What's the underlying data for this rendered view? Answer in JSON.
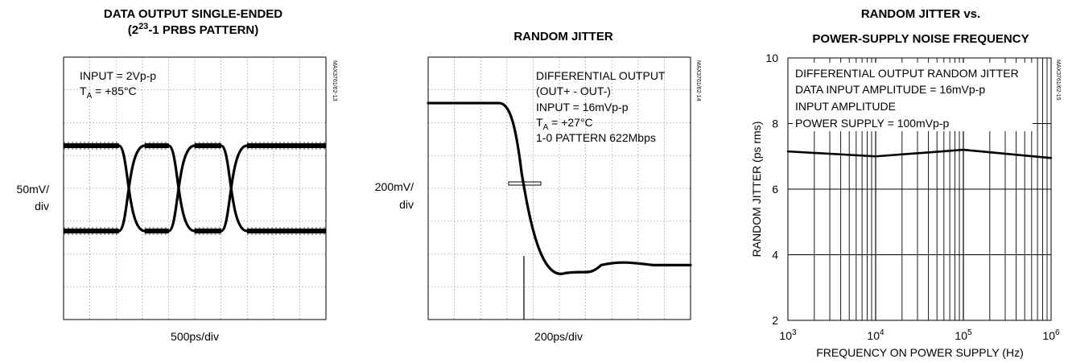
{
  "chart_data": [
    {
      "type": "line",
      "title_line1": "DATA OUTPUT SINGLE-ENDED",
      "title_line2_pre": "(2",
      "title_line2_sup": "23",
      "title_line2_post": "-1 PRBS PATTERN)",
      "annotations": [
        "INPUT = 2Vp-p",
        "T",
        "A",
        " = +85°C"
      ],
      "ylabel": [
        "50mV/",
        "div"
      ],
      "xlabel": "500ps/div",
      "code": "MAX3761/62-13",
      "grid": true,
      "divisions": [
        10,
        8
      ],
      "levels": {
        "high": 1.0,
        "low": -1.0
      },
      "crossings": [
        -2.4,
        -0.5,
        1.5
      ]
    },
    {
      "type": "line",
      "title": "RANDOM JITTER",
      "annotations": [
        "DIFFERENTIAL OUTPUT",
        "(OUT+ - OUT-)",
        "INPUT = 16mVp-p",
        "T",
        "A",
        " = +27°C",
        "1-0 PATTERN 622Mbps"
      ],
      "ylabel": [
        "200mV/",
        "div"
      ],
      "xlabel": "200ps/div",
      "code": "MAX3761/62-14",
      "grid": true,
      "divisions": [
        10,
        8
      ],
      "levels": {
        "start": 2.0,
        "end": -1.8
      }
    },
    {
      "type": "line",
      "title_line1": "RANDOM JITTER vs.",
      "title_line2": "POWER-SUPPLY NOISE FREQUENCY",
      "xlabel": "FREQUENCY ON POWER SUPPLY (Hz)",
      "ylabel": "RANDOM JITTER (ps rms)",
      "code": "MAX3761/62-15",
      "x_scale": "log",
      "xlim": [
        1000,
        1000000
      ],
      "ylim": [
        2,
        10
      ],
      "yticks": [
        "2",
        "4",
        "6",
        "8",
        "10"
      ],
      "xticks": [
        {
          "base": "10",
          "exp": "3"
        },
        {
          "base": "10",
          "exp": "4"
        },
        {
          "base": "10",
          "exp": "5"
        },
        {
          "base": "10",
          "exp": "6"
        }
      ],
      "annotations": [
        "DIFFERENTIAL OUTPUT RANDOM JITTER",
        "DATA INPUT AMPLITUDE = 16mVp-p",
        "INPUT AMPLITUDE",
        "POWER SUPPLY = 100mVp-p"
      ],
      "grid": true,
      "series": [
        {
          "x": [
            1000,
            10000,
            100000,
            1000000
          ],
          "y": [
            7.15,
            7.0,
            7.2,
            6.95
          ]
        }
      ]
    }
  ]
}
